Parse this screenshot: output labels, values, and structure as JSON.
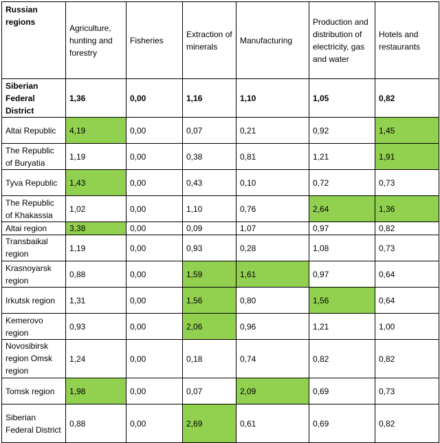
{
  "table": {
    "highlight_color": "#92d050",
    "headers": [
      "Russian regions",
      "Agriculture, hunting and forestry",
      "Fisheries",
      "Extraction of minerals",
      "Manufacturing",
      "Production and distribution of electricity, gas and water",
      "Hotels and restaurants"
    ],
    "rows": [
      {
        "region": "Siberian Federal District",
        "values": [
          "1,36",
          "0,00",
          "1,16",
          "1,10",
          "1,05",
          "0,82"
        ],
        "bold": true,
        "highlight": []
      },
      {
        "region": "Altai Republic",
        "values": [
          "4,19",
          "0,00",
          "0,07",
          "0,21",
          "0,92",
          "1,45"
        ],
        "highlight": [
          0,
          5
        ]
      },
      {
        "region": "The Republic of Buryatia",
        "values": [
          "1,19",
          "0,00",
          "0,38",
          "0,81",
          "1,21",
          "1,91"
        ],
        "highlight": [
          5
        ]
      },
      {
        "region": "Tyva Republic",
        "values": [
          "1,43",
          "0,00",
          "0,43",
          "0,10",
          "0,72",
          "0,73"
        ],
        "highlight": [
          0
        ]
      },
      {
        "region": "The Republic of Khakassia",
        "values": [
          "1,02",
          "0,00",
          "1,10",
          "0,76",
          "2,64",
          "1,36"
        ],
        "highlight": [
          4,
          5
        ]
      },
      {
        "region": "Altai region",
        "values": [
          "3,38",
          "0,00",
          "0,09",
          "1,07",
          "0,97",
          "0,82"
        ],
        "highlight": [
          0
        ]
      },
      {
        "region": "Transbaikal region",
        "values": [
          "1,19",
          "0,00",
          "0,93",
          "0,28",
          "1,08",
          "0,73"
        ],
        "highlight": []
      },
      {
        "region": "Krasnoyarsk region",
        "values": [
          "0,88",
          "0,00",
          "1,59",
          "1,61",
          "0,97",
          "0,64"
        ],
        "highlight": [
          2,
          3
        ]
      },
      {
        "region": "Irkutsk region",
        "values": [
          "1,31",
          "0,00",
          "1,56",
          "0,80",
          "1,56",
          "0,64"
        ],
        "highlight": [
          2,
          4
        ]
      },
      {
        "region": "Kemerovo region",
        "values": [
          "0,93",
          "0,00",
          "2,06",
          "0,96",
          "1,21",
          "1,00"
        ],
        "highlight": [
          2
        ]
      },
      {
        "region": "Novosibirsk region Omsk region",
        "values": [
          "1,24",
          "0,00",
          "0,18",
          "0,74",
          "0,82",
          "0,82"
        ],
        "highlight": []
      },
      {
        "region": "Tomsk region",
        "values": [
          "1,98",
          "0,00",
          "0,07",
          "2,09",
          "0,69",
          "0,73"
        ],
        "highlight": [
          0,
          3
        ]
      },
      {
        "region": "Siberian Federal District",
        "values": [
          "0,88",
          "0,00",
          "2,69",
          "0,61",
          "0,69",
          "0,82"
        ],
        "highlight": [
          2
        ]
      }
    ]
  }
}
